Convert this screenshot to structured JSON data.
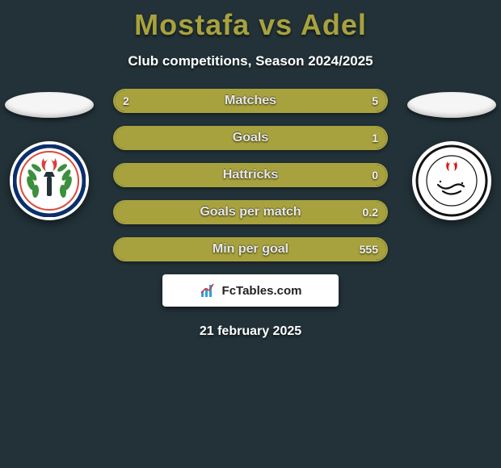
{
  "header": {
    "title": "Mostafa vs Adel",
    "subtitle": "Club competitions, Season 2024/2025"
  },
  "colors": {
    "bg": "#223238",
    "accent": "#a8a23e",
    "bar_border": "#a8a23e",
    "flag_bg": "#f5f5f5",
    "badge_bg": "#ffffff",
    "brand_bg": "#ffffff"
  },
  "bars": [
    {
      "label": "Matches",
      "left": "2",
      "right": "5",
      "left_pct": 28,
      "right_pct": 72
    },
    {
      "label": "Goals",
      "left": "",
      "right": "1",
      "left_pct": 0,
      "right_pct": 100
    },
    {
      "label": "Hattricks",
      "left": "",
      "right": "0",
      "left_pct": 0,
      "right_pct": 100
    },
    {
      "label": "Goals per match",
      "left": "",
      "right": "0.2",
      "left_pct": 0,
      "right_pct": 100
    },
    {
      "label": "Min per goal",
      "left": "",
      "right": "555",
      "left_pct": 0,
      "right_pct": 100
    }
  ],
  "brand": {
    "text": "FcTables.com"
  },
  "date": "21 february 2025",
  "badges": {
    "left": {
      "ring": "#0b2f6b",
      "inner_ring": "#d94b3a",
      "leaf": "#3c8f3c",
      "flame": "#e03c3c",
      "torch": "#223238"
    },
    "right": {
      "ring": "#111",
      "inner_bg": "#fff",
      "script": "#111",
      "flame": "#d11"
    }
  }
}
